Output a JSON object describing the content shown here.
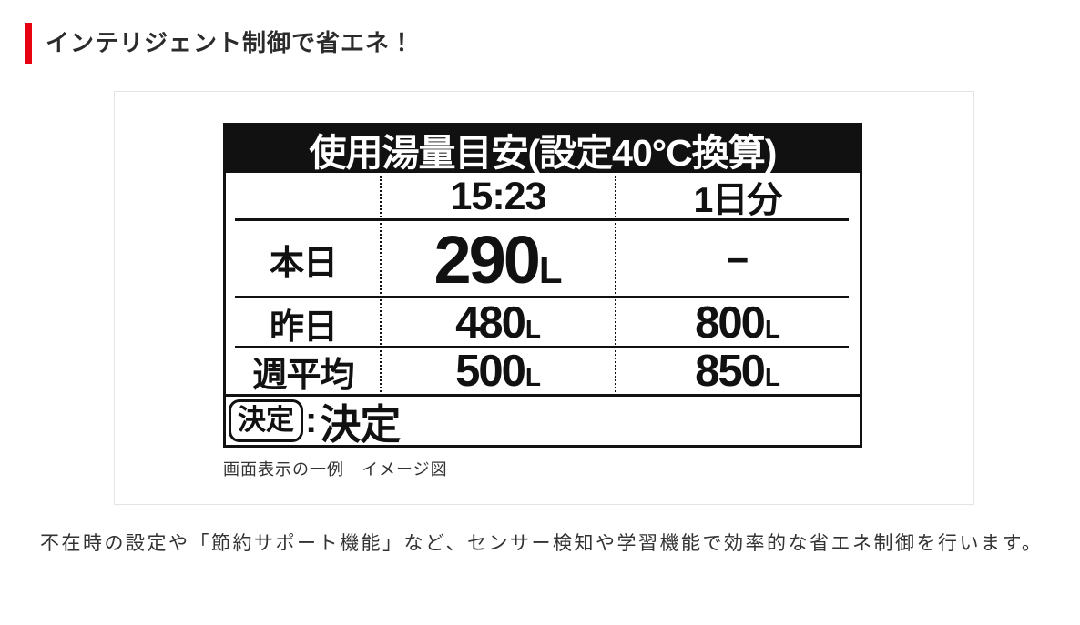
{
  "heading": {
    "title": "インテリジェント制御で省エネ！",
    "accent_color": "#e60012"
  },
  "figure": {
    "caption": "画面表示の一例　イメージ図"
  },
  "lcd": {
    "title": "使用湯量目安(設定40°C換算)",
    "columns": {
      "time_header": "15:23",
      "day_header": "1日分"
    },
    "rows": [
      {
        "label": "本日",
        "time_value": "290",
        "time_unit": "L",
        "day_value": "−",
        "day_unit": ""
      },
      {
        "label": "昨日",
        "time_value": "480",
        "time_unit": "L",
        "day_value": "800",
        "day_unit": "L"
      },
      {
        "label": "週平均",
        "time_value": "500",
        "time_unit": "L",
        "day_value": "850",
        "day_unit": "L"
      }
    ],
    "footer": {
      "button_label": "決定",
      "separator": ":",
      "action_label": "決定"
    },
    "colors": {
      "panel_black": "#111111",
      "panel_bg": "#ffffff"
    }
  },
  "description": "不在時の設定や「節約サポート機能」など、センサー検知や学習機能で効率的な省エネ制御を行います。"
}
